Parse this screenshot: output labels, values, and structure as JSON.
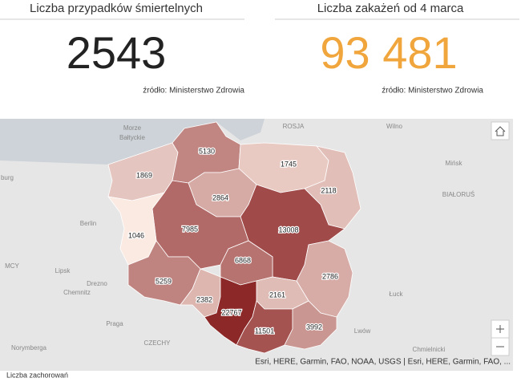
{
  "kpis": [
    {
      "title": "Liczba przypadków śmiertelnych",
      "value": "2543",
      "source": "źródło: Ministerstwo Zdrowia"
    },
    {
      "title": "Liczba zakażeń od 4 marca",
      "value": "93 481",
      "source": "źródło: Ministerstwo Zdrowia"
    }
  ],
  "map": {
    "values": [
      1869,
      5130,
      1745,
      2118,
      2864,
      13008,
      7985,
      1046,
      6868,
      2786,
      5259,
      2382,
      2161,
      22767,
      11501,
      3992
    ],
    "places": [
      "Morze",
      "Bałtyckie",
      "ROSJA",
      "Wilno",
      "Mińsk",
      "BIAŁORUŚ",
      "burg",
      "Berlin",
      "MCY",
      "Lipsk",
      "Drezno",
      "Chemnitz",
      "Łuck",
      "Praga",
      "Lwów",
      "CZECHY",
      "Norymberga",
      "Chmielnicki"
    ],
    "attribution": "Esri, HERE, Garmin, FAO, NOAA, USGS | Esri, HERE, Garmin, FAO, ..."
  },
  "footer": "Liczba zachorowań"
}
